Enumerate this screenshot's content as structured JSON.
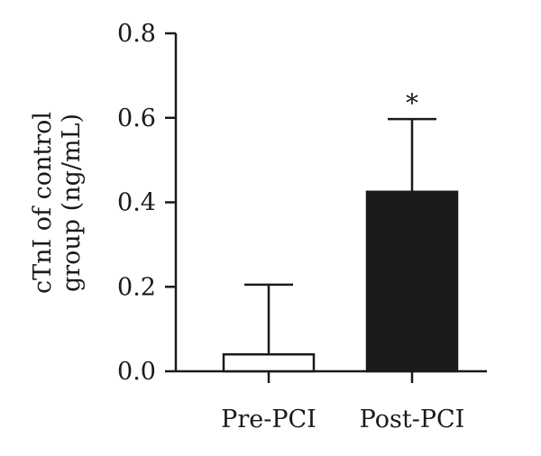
{
  "chart_data": {
    "type": "bar",
    "categories": [
      "Pre-PCI",
      "Post-PCI"
    ],
    "values": [
      0.04,
      0.425
    ],
    "error_upper": [
      0.205,
      0.597
    ],
    "bar_colors": [
      "#ffffff",
      "#1a1a1a"
    ],
    "annotations": [
      "",
      "*"
    ],
    "ylabel_lines": [
      "cTnI of control",
      "group (ng/mL)"
    ],
    "ylim": [
      0.0,
      0.8
    ],
    "yticks": [
      "0.0",
      "0.2",
      "0.4",
      "0.6",
      "0.8"
    ],
    "ytick_values": [
      0.0,
      0.2,
      0.4,
      0.6,
      0.8
    ],
    "grid": false
  }
}
